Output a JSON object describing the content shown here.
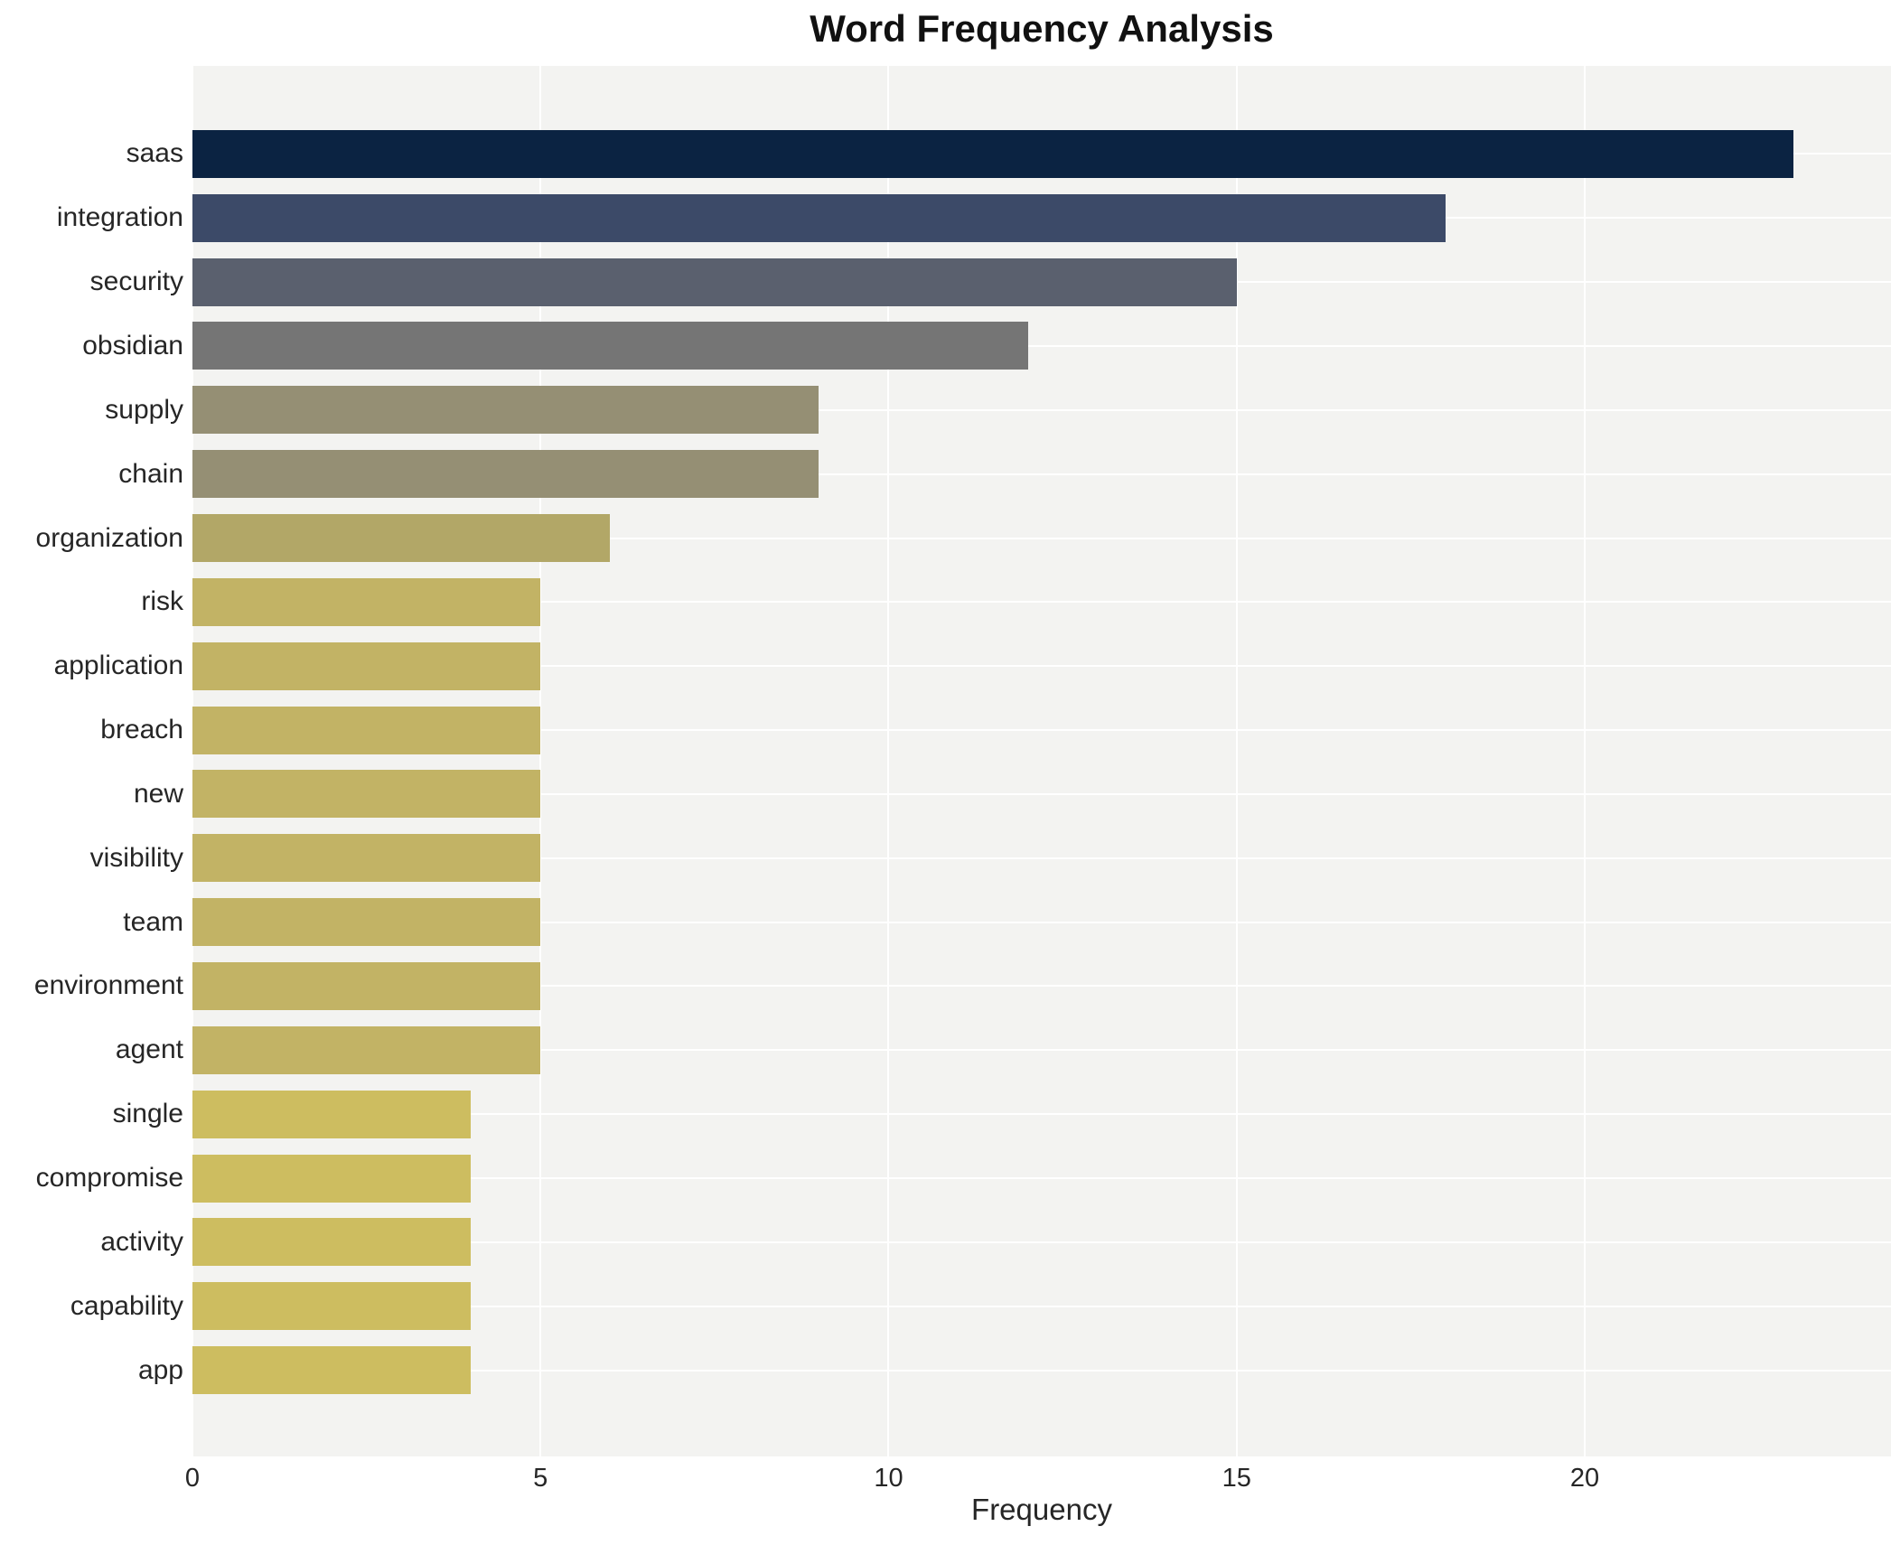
{
  "chart_data": {
    "type": "bar",
    "orientation": "horizontal",
    "title": "Word Frequency Analysis",
    "xlabel": "Frequency",
    "ylabel": "",
    "xlim": [
      0,
      24.4
    ],
    "xticks": [
      0,
      5,
      10,
      15,
      20
    ],
    "grid": "on",
    "legend": "none",
    "plot_background": "#f3f3f1",
    "grid_color": "#ffffff",
    "title_color": "#111111",
    "tick_color": "#262626",
    "categories": [
      "saas",
      "integration",
      "security",
      "obsidian",
      "supply",
      "chain",
      "organization",
      "risk",
      "application",
      "breach",
      "new",
      "visibility",
      "team",
      "environment",
      "agent",
      "single",
      "compromise",
      "activity",
      "capability",
      "app"
    ],
    "values": [
      23,
      18,
      15,
      12,
      9,
      9,
      6,
      5,
      5,
      5,
      5,
      5,
      5,
      5,
      5,
      4,
      4,
      4,
      4,
      4
    ],
    "bar_colors": [
      "#0b2342",
      "#3c4a68",
      "#5a606e",
      "#757575",
      "#958f74",
      "#958f74",
      "#b2a767",
      "#c2b365",
      "#c2b365",
      "#c2b365",
      "#c2b365",
      "#c2b365",
      "#c2b365",
      "#c2b365",
      "#c2b365",
      "#cdbd60",
      "#cdbd60",
      "#cdbd60",
      "#cdbd60",
      "#cdbd60"
    ]
  }
}
